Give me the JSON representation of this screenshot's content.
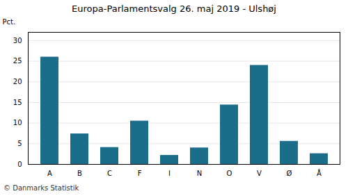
{
  "chart_data": {
    "type": "bar",
    "title": "Europa-Parlamentsvalg 26. maj 2019 - Ulshøj",
    "categories": [
      "A",
      "B",
      "C",
      "F",
      "I",
      "N",
      "O",
      "V",
      "Ø",
      "Å"
    ],
    "values": [
      26.0,
      7.4,
      4.1,
      10.5,
      2.2,
      4.0,
      14.4,
      24.0,
      5.6,
      2.6
    ],
    "color": "#1a6e8a",
    "ylabel": "Pct.",
    "caption": "© Danmarks Statistik",
    "ylim": [
      0,
      32
    ],
    "yticks": [
      0,
      5,
      10,
      15,
      20,
      25,
      30
    ],
    "grid": true
  }
}
